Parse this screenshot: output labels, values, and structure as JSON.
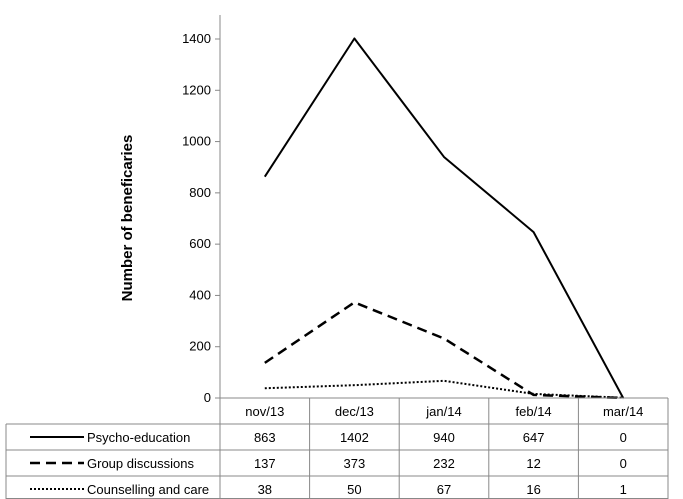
{
  "chart_data": {
    "type": "line",
    "ylabel": "Number of beneficaries",
    "ylim": [
      0,
      1400
    ],
    "y_ticks": [
      "0",
      "200",
      "400",
      "600",
      "800",
      "1000",
      "1200",
      "1400"
    ],
    "categories": [
      "nov/13",
      "dec/13",
      "jan/14",
      "feb/14",
      "mar/14"
    ],
    "legend_placement": "data-table-left",
    "series": [
      {
        "name": "Psycho-education",
        "line_style": "solid",
        "values": [
          863,
          1402,
          940,
          647,
          0
        ]
      },
      {
        "name": "Group discussions",
        "line_style": "dashed",
        "values": [
          137,
          373,
          232,
          12,
          0
        ]
      },
      {
        "name": "Counselling and care",
        "line_style": "dotted",
        "values": [
          38,
          50,
          67,
          16,
          1
        ]
      }
    ]
  }
}
